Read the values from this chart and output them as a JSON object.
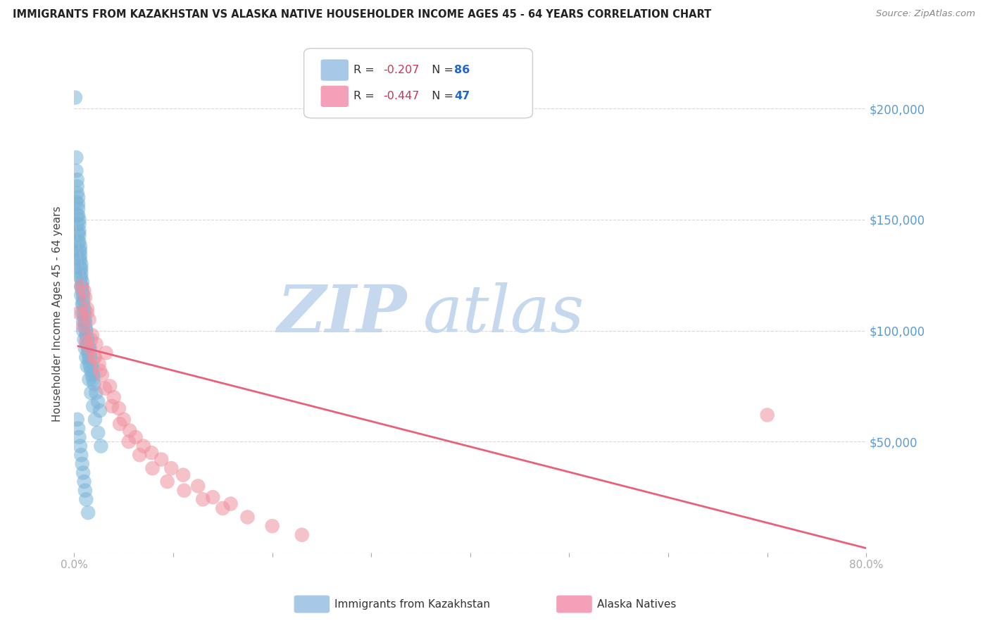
{
  "title": "IMMIGRANTS FROM KAZAKHSTAN VS ALASKA NATIVE HOUSEHOLDER INCOME AGES 45 - 64 YEARS CORRELATION CHART",
  "source": "Source: ZipAtlas.com",
  "ylabel": "Householder Income Ages 45 - 64 years",
  "ylim": [
    0,
    215000
  ],
  "xlim": [
    0.0,
    0.8
  ],
  "kazakhstan_color": "#7ab5d8",
  "alaska_color": "#f090a0",
  "kazakhstan_line_color": "#90b8d0",
  "alaska_line_color": "#e8607a",
  "background_color": "#ffffff",
  "grid_color": "#d8d8d8",
  "right_axis_color": "#5b9bd5",
  "watermark_zip_color": "#c5d8ee",
  "watermark_atlas_color": "#c5d8ee",
  "kazakhstan_scatter_x": [
    0.001,
    0.002,
    0.002,
    0.003,
    0.003,
    0.003,
    0.004,
    0.004,
    0.004,
    0.004,
    0.005,
    0.005,
    0.005,
    0.005,
    0.005,
    0.006,
    0.006,
    0.006,
    0.006,
    0.007,
    0.007,
    0.007,
    0.007,
    0.008,
    0.008,
    0.008,
    0.009,
    0.009,
    0.009,
    0.01,
    0.01,
    0.01,
    0.011,
    0.011,
    0.012,
    0.012,
    0.013,
    0.013,
    0.014,
    0.014,
    0.015,
    0.015,
    0.016,
    0.017,
    0.018,
    0.019,
    0.02,
    0.022,
    0.024,
    0.026,
    0.002,
    0.003,
    0.003,
    0.004,
    0.004,
    0.005,
    0.005,
    0.006,
    0.006,
    0.007,
    0.007,
    0.008,
    0.008,
    0.009,
    0.009,
    0.01,
    0.011,
    0.012,
    0.013,
    0.015,
    0.017,
    0.019,
    0.021,
    0.024,
    0.027,
    0.003,
    0.004,
    0.005,
    0.006,
    0.007,
    0.008,
    0.009,
    0.01,
    0.011,
    0.012,
    0.014
  ],
  "kazakhstan_scatter_y": [
    205000,
    178000,
    172000,
    168000,
    165000,
    162000,
    160000,
    157000,
    155000,
    152000,
    150000,
    148000,
    145000,
    143000,
    140000,
    138000,
    136000,
    134000,
    132000,
    130000,
    128000,
    126000,
    124000,
    122000,
    120000,
    118000,
    116000,
    114000,
    112000,
    110000,
    108000,
    106000,
    104000,
    102000,
    100000,
    98000,
    96000,
    94000,
    92000,
    90000,
    88000,
    86000,
    84000,
    82000,
    80000,
    78000,
    76000,
    72000,
    68000,
    64000,
    158000,
    152000,
    148000,
    144000,
    140000,
    136000,
    132000,
    128000,
    124000,
    120000,
    116000,
    112000,
    108000,
    104000,
    100000,
    96000,
    92000,
    88000,
    84000,
    78000,
    72000,
    66000,
    60000,
    54000,
    48000,
    60000,
    56000,
    52000,
    48000,
    44000,
    40000,
    36000,
    32000,
    28000,
    24000,
    18000
  ],
  "alaska_scatter_x": [
    0.005,
    0.007,
    0.009,
    0.011,
    0.012,
    0.013,
    0.015,
    0.016,
    0.018,
    0.02,
    0.022,
    0.025,
    0.028,
    0.032,
    0.036,
    0.04,
    0.045,
    0.05,
    0.056,
    0.062,
    0.07,
    0.078,
    0.088,
    0.098,
    0.11,
    0.125,
    0.14,
    0.158,
    0.01,
    0.013,
    0.017,
    0.021,
    0.026,
    0.031,
    0.038,
    0.046,
    0.055,
    0.066,
    0.079,
    0.094,
    0.111,
    0.13,
    0.15,
    0.175,
    0.2,
    0.23,
    0.7
  ],
  "alaska_scatter_y": [
    108000,
    120000,
    102000,
    115000,
    95000,
    110000,
    105000,
    92000,
    98000,
    88000,
    94000,
    85000,
    80000,
    90000,
    75000,
    70000,
    65000,
    60000,
    55000,
    52000,
    48000,
    45000,
    42000,
    38000,
    35000,
    30000,
    25000,
    22000,
    118000,
    108000,
    96000,
    88000,
    82000,
    74000,
    66000,
    58000,
    50000,
    44000,
    38000,
    32000,
    28000,
    24000,
    20000,
    16000,
    12000,
    8000,
    62000
  ],
  "kazakhstan_trend_x": [
    0.001,
    0.026
  ],
  "kazakhstan_trend_y": [
    148000,
    78000
  ],
  "alaska_trend_x": [
    0.004,
    0.8
  ],
  "alaska_trend_y": [
    93000,
    2000
  ],
  "legend_box": {
    "label1": "R = -0.207   N = 86",
    "label2": "R = -0.447   N = 47",
    "color1": "#a8c8e8",
    "color2": "#f4a0b8"
  },
  "bottom_legend": {
    "label1": "Immigrants from Kazakhstan",
    "label2": "Alaska Natives",
    "color1": "#a8c8e8",
    "color2": "#f4a0b8"
  }
}
